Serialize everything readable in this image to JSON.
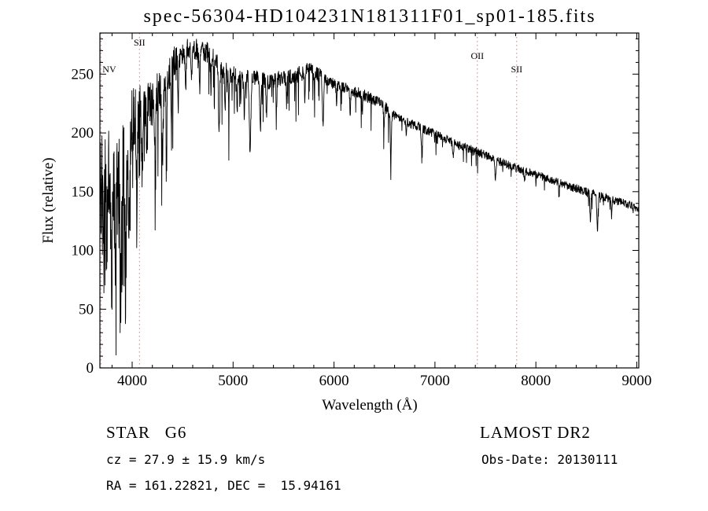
{
  "figure": {
    "title": "spec-56304-HD104231N181311F01_sp01-185.fits",
    "annotations": {
      "star_class": "STAR   G6",
      "survey": "LAMOST DR2",
      "cz": "cz = 27.9 ± 15.9 km/s",
      "obs_date": "Obs-Date: 20130111",
      "radec": "RA = 161.22821, DEC =  15.94161"
    }
  },
  "chart_data": {
    "type": "line",
    "title": "spec-56304-HD104231N181311F01_sp01-185.fits",
    "xlabel": "Wavelength (Å)",
    "ylabel": "Flux (relative)",
    "xlim": [
      3680,
      9020
    ],
    "ylim": [
      0,
      285
    ],
    "x_ticks": [
      4000,
      5000,
      6000,
      7000,
      8000,
      9000
    ],
    "y_ticks": [
      0,
      50,
      100,
      150,
      200,
      250
    ],
    "x_minor_step": 200,
    "y_minor_step": 10,
    "grid": false,
    "legend": "none",
    "line_color": "#000000",
    "marker_color": "#cc8484",
    "line_markers": [
      {
        "label": "NV",
        "x": 3690,
        "row": 2
      },
      {
        "label": "SII",
        "x": 4072,
        "row": 0
      },
      {
        "label": "OII",
        "x": 7420,
        "row": 1
      },
      {
        "label": "SII",
        "x": 7810,
        "row": 2
      }
    ],
    "spectrum": {
      "seed": 20130111,
      "sample_step": 2.5,
      "continuum": [
        [
          3680,
          155
        ],
        [
          3720,
          175
        ],
        [
          3760,
          185
        ],
        [
          3800,
          150
        ],
        [
          3850,
          155
        ],
        [
          3900,
          175
        ],
        [
          3950,
          185
        ],
        [
          4000,
          210
        ],
        [
          4060,
          220
        ],
        [
          4120,
          232
        ],
        [
          4200,
          228
        ],
        [
          4280,
          240
        ],
        [
          4360,
          252
        ],
        [
          4450,
          262
        ],
        [
          4550,
          272
        ],
        [
          4650,
          271
        ],
        [
          4760,
          268
        ],
        [
          4850,
          258
        ],
        [
          4950,
          251
        ],
        [
          5050,
          250
        ],
        [
          5150,
          248
        ],
        [
          5250,
          246
        ],
        [
          5350,
          244
        ],
        [
          5450,
          246
        ],
        [
          5550,
          247
        ],
        [
          5650,
          250
        ],
        [
          5750,
          253
        ],
        [
          5850,
          250
        ],
        [
          5950,
          243
        ],
        [
          6050,
          240
        ],
        [
          6150,
          237
        ],
        [
          6250,
          234
        ],
        [
          6350,
          230
        ],
        [
          6450,
          225
        ],
        [
          6550,
          219
        ],
        [
          6650,
          213
        ],
        [
          6750,
          208
        ],
        [
          6850,
          205
        ],
        [
          6950,
          201
        ],
        [
          7050,
          197
        ],
        [
          7150,
          193
        ],
        [
          7250,
          189
        ],
        [
          7350,
          186
        ],
        [
          7450,
          183
        ],
        [
          7550,
          179
        ],
        [
          7650,
          175
        ],
        [
          7750,
          172
        ],
        [
          7850,
          169
        ],
        [
          7950,
          166
        ],
        [
          8050,
          163
        ],
        [
          8150,
          160
        ],
        [
          8250,
          157
        ],
        [
          8350,
          154
        ],
        [
          8450,
          151
        ],
        [
          8550,
          149
        ],
        [
          8650,
          146
        ],
        [
          8750,
          143
        ],
        [
          8850,
          141
        ],
        [
          8950,
          138
        ],
        [
          9020,
          135
        ]
      ],
      "absorption_lines": [
        [
          3720,
          60,
          8
        ],
        [
          3750,
          70,
          7
        ],
        [
          3798,
          65,
          7
        ],
        [
          3835,
          70,
          6
        ],
        [
          3890,
          72,
          7
        ],
        [
          3934,
          80,
          8
        ],
        [
          3969,
          75,
          8
        ],
        [
          4045,
          50,
          6
        ],
        [
          4101,
          62,
          7
        ],
        [
          4145,
          38,
          5
        ],
        [
          4227,
          48,
          6
        ],
        [
          4300,
          58,
          9
        ],
        [
          4340,
          52,
          6
        ],
        [
          4385,
          36,
          5
        ],
        [
          4455,
          32,
          5
        ],
        [
          4530,
          32,
          5
        ],
        [
          4590,
          26,
          5
        ],
        [
          4668,
          32,
          5
        ],
        [
          4780,
          26,
          5
        ],
        [
          4861,
          52,
          6
        ],
        [
          4920,
          30,
          5
        ],
        [
          4957,
          24,
          4
        ],
        [
          5040,
          26,
          5
        ],
        [
          5110,
          32,
          5
        ],
        [
          5168,
          62,
          8
        ],
        [
          5270,
          42,
          6
        ],
        [
          5330,
          30,
          5
        ],
        [
          5430,
          24,
          4
        ],
        [
          5530,
          20,
          4
        ],
        [
          5710,
          20,
          4
        ],
        [
          5890,
          42,
          6
        ],
        [
          6025,
          16,
          4
        ],
        [
          6160,
          20,
          4
        ],
        [
          6280,
          15,
          4
        ],
        [
          6495,
          18,
          4
        ],
        [
          6563,
          44,
          5
        ],
        [
          6717,
          12,
          4
        ],
        [
          6870,
          18,
          6
        ],
        [
          7180,
          12,
          5
        ],
        [
          7600,
          15,
          6
        ],
        [
          7890,
          11,
          4
        ],
        [
          8230,
          11,
          4
        ],
        [
          8540,
          24,
          5
        ],
        [
          8610,
          30,
          6
        ],
        [
          8750,
          13,
          4
        ]
      ],
      "noise_segments": [
        [
          3680,
          3800,
          50,
          0.3,
          90
        ],
        [
          3800,
          3950,
          40,
          0.25,
          85
        ],
        [
          3950,
          4150,
          28,
          0.18,
          75
        ],
        [
          4150,
          4450,
          16,
          0.14,
          65
        ],
        [
          4450,
          5000,
          9,
          0.08,
          45
        ],
        [
          5000,
          5900,
          7,
          0.06,
          38
        ],
        [
          5900,
          6600,
          5,
          0.05,
          26
        ],
        [
          6600,
          7500,
          4,
          0.035,
          16
        ],
        [
          7500,
          9021,
          3.5,
          0.03,
          13
        ]
      ]
    }
  }
}
